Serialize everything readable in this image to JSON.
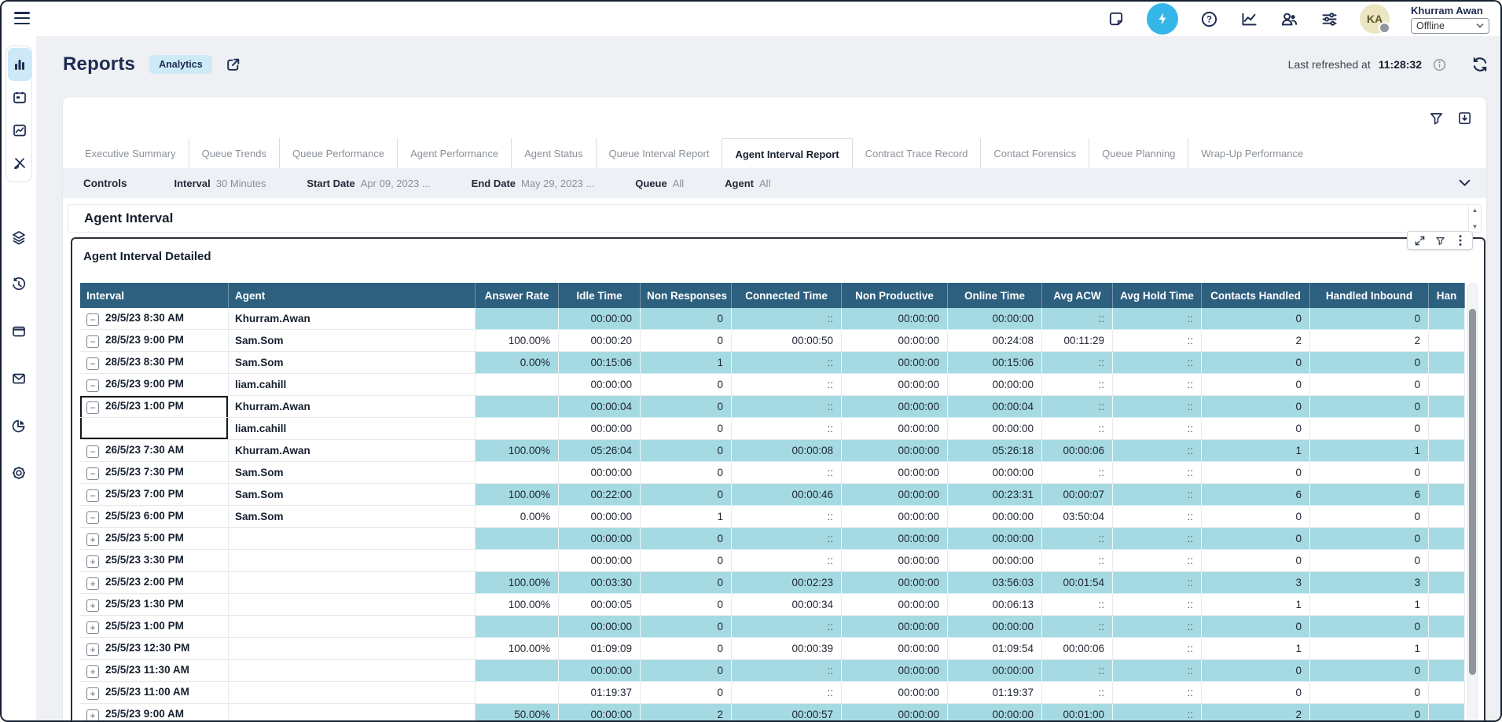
{
  "user": {
    "name": "Khurram Awan",
    "initials": "KA",
    "status": "Offline"
  },
  "page": {
    "title": "Reports",
    "badge": "Analytics",
    "last_refreshed_label": "Last refreshed at",
    "last_refreshed_time": "11:28:32"
  },
  "tabs": [
    {
      "label": "Executive Summary",
      "active": false
    },
    {
      "label": "Queue Trends",
      "active": false
    },
    {
      "label": "Queue Performance",
      "active": false
    },
    {
      "label": "Agent Performance",
      "active": false
    },
    {
      "label": "Agent Status",
      "active": false
    },
    {
      "label": "Queue Interval Report",
      "active": false
    },
    {
      "label": "Agent Interval Report",
      "active": true
    },
    {
      "label": "Contract Trace Record",
      "active": false
    },
    {
      "label": "Contact Forensics",
      "active": false
    },
    {
      "label": "Queue Planning",
      "active": false
    },
    {
      "label": "Wrap-Up Performance",
      "active": false
    }
  ],
  "controls": {
    "label": "Controls",
    "items": [
      {
        "label": "Interval",
        "value": "30 Minutes"
      },
      {
        "label": "Start Date",
        "value": "Apr 09, 2023 ..."
      },
      {
        "label": "End Date",
        "value": "May 29, 2023 ..."
      },
      {
        "label": "Queue",
        "value": "All"
      },
      {
        "label": "Agent",
        "value": "All"
      }
    ]
  },
  "section": {
    "title": "Agent Interval"
  },
  "panel": {
    "title": "Agent Interval Detailed"
  },
  "table": {
    "columns": [
      "Interval",
      "Agent",
      "Answer Rate",
      "Idle Time",
      "Non Responses",
      "Connected Time",
      "Non Productive",
      "Online Time",
      "Avg ACW",
      "Avg Hold Time",
      "Contacts Handled",
      "Handled Inbound",
      "Han"
    ],
    "rows": [
      {
        "expand": "minus",
        "interval": "29/5/23 8:30 AM",
        "agent": "Khurram.Awan",
        "values": [
          "",
          "00:00:00",
          "0",
          "::",
          "00:00:00",
          "00:00:00",
          "::",
          "::",
          "0",
          "0"
        ]
      },
      {
        "expand": "minus",
        "interval": "28/5/23 9:00 PM",
        "agent": "Sam.Som",
        "values": [
          "100.00%",
          "00:00:20",
          "0",
          "00:00:50",
          "00:00:00",
          "00:24:08",
          "00:11:29",
          "::",
          "2",
          "2"
        ]
      },
      {
        "expand": "minus",
        "interval": "28/5/23 8:30 PM",
        "agent": "Sam.Som",
        "values": [
          "0.00%",
          "00:15:06",
          "1",
          "::",
          "00:00:00",
          "00:15:06",
          "::",
          "::",
          "0",
          "0"
        ]
      },
      {
        "expand": "minus",
        "interval": "26/5/23 9:00 PM",
        "agent": "liam.cahill",
        "values": [
          "",
          "00:00:00",
          "0",
          "::",
          "00:00:00",
          "00:00:00",
          "::",
          "::",
          "0",
          "0"
        ]
      },
      {
        "expand": "minus",
        "interval": "26/5/23 1:00 PM",
        "agent": "Khurram.Awan",
        "sel": "top",
        "values": [
          "",
          "00:00:04",
          "0",
          "::",
          "00:00:00",
          "00:00:04",
          "::",
          "::",
          "0",
          "0"
        ]
      },
      {
        "expand": "",
        "interval": "",
        "agent": "liam.cahill",
        "sel": "bottom",
        "values": [
          "",
          "00:00:00",
          "0",
          "::",
          "00:00:00",
          "00:00:00",
          "::",
          "::",
          "0",
          "0"
        ]
      },
      {
        "expand": "minus",
        "interval": "26/5/23 7:30 AM",
        "agent": "Khurram.Awan",
        "values": [
          "100.00%",
          "05:26:04",
          "0",
          "00:00:08",
          "00:00:00",
          "05:26:18",
          "00:00:06",
          "::",
          "1",
          "1"
        ]
      },
      {
        "expand": "minus",
        "interval": "25/5/23 7:30 PM",
        "agent": "Sam.Som",
        "values": [
          "",
          "00:00:00",
          "0",
          "::",
          "00:00:00",
          "00:00:00",
          "::",
          "::",
          "0",
          "0"
        ]
      },
      {
        "expand": "minus",
        "interval": "25/5/23 7:00 PM",
        "agent": "Sam.Som",
        "values": [
          "100.00%",
          "00:22:00",
          "0",
          "00:00:46",
          "00:00:00",
          "00:23:31",
          "00:00:07",
          "::",
          "6",
          "6"
        ]
      },
      {
        "expand": "minus",
        "interval": "25/5/23 6:00 PM",
        "agent": "Sam.Som",
        "values": [
          "0.00%",
          "00:00:00",
          "1",
          "::",
          "00:00:00",
          "00:00:00",
          "03:50:04",
          "::",
          "0",
          "0"
        ]
      },
      {
        "expand": "plus",
        "interval": "25/5/23 5:00 PM",
        "agent": "",
        "values": [
          "",
          "00:00:00",
          "0",
          "::",
          "00:00:00",
          "00:00:00",
          "::",
          "::",
          "0",
          "0"
        ]
      },
      {
        "expand": "plus",
        "interval": "25/5/23 3:30 PM",
        "agent": "",
        "values": [
          "",
          "00:00:00",
          "0",
          "::",
          "00:00:00",
          "00:00:00",
          "::",
          "::",
          "0",
          "0"
        ]
      },
      {
        "expand": "plus",
        "interval": "25/5/23 2:00 PM",
        "agent": "",
        "values": [
          "100.00%",
          "00:03:30",
          "0",
          "00:02:23",
          "00:00:00",
          "03:56:03",
          "00:01:54",
          "::",
          "3",
          "3"
        ]
      },
      {
        "expand": "plus",
        "interval": "25/5/23 1:30 PM",
        "agent": "",
        "values": [
          "100.00%",
          "00:00:05",
          "0",
          "00:00:34",
          "00:00:00",
          "00:06:13",
          "::",
          "::",
          "1",
          "1"
        ]
      },
      {
        "expand": "plus",
        "interval": "25/5/23 1:00 PM",
        "agent": "",
        "values": [
          "",
          "00:00:00",
          "0",
          "::",
          "00:00:00",
          "00:00:00",
          "::",
          "::",
          "0",
          "0"
        ]
      },
      {
        "expand": "plus",
        "interval": "25/5/23 12:30 PM",
        "agent": "",
        "values": [
          "100.00%",
          "01:09:09",
          "0",
          "00:00:39",
          "00:00:00",
          "01:09:54",
          "00:00:06",
          "::",
          "1",
          "1"
        ]
      },
      {
        "expand": "plus",
        "interval": "25/5/23 11:30 AM",
        "agent": "",
        "values": [
          "",
          "00:00:00",
          "0",
          "::",
          "00:00:00",
          "00:00:00",
          "::",
          "::",
          "0",
          "0"
        ]
      },
      {
        "expand": "plus",
        "interval": "25/5/23 11:00 AM",
        "agent": "",
        "values": [
          "",
          "01:19:37",
          "0",
          "::",
          "00:00:00",
          "01:19:37",
          "::",
          "::",
          "0",
          "0"
        ]
      },
      {
        "expand": "plus",
        "interval": "25/5/23 9:00 AM",
        "agent": "",
        "values": [
          "50.00%",
          "00:00:00",
          "2",
          "00:00:57",
          "00:00:00",
          "00:00:00",
          "00:01:00",
          "::",
          "2",
          "0"
        ]
      }
    ]
  },
  "colors": {
    "accent_cyan": "#35b6e9",
    "header_teal": "#2d5f7e",
    "row_teal": "#a5dae3",
    "navy": "#1e2b50"
  }
}
